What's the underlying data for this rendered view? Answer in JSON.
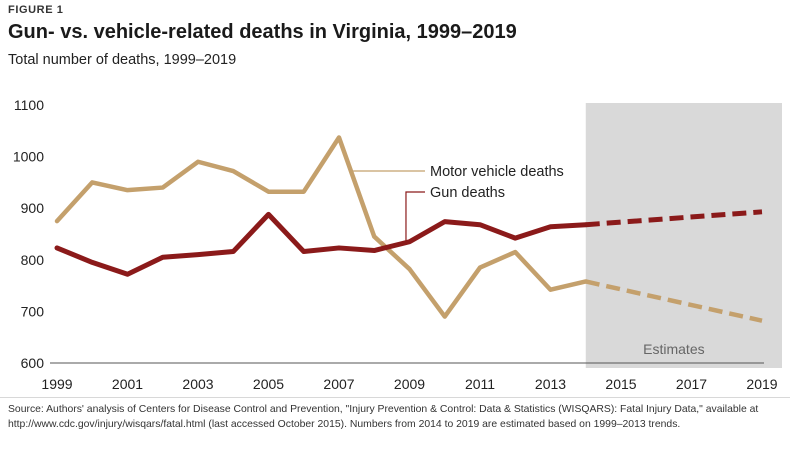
{
  "figure_label": "FIGURE 1",
  "title": "Gun- vs. vehicle-related deaths in Virginia, 1999–2019",
  "subtitle": "Total number of deaths, 1999–2019",
  "source": "Source: Authors' analysis of Centers for Disease Control and Prevention, \"Injury Prevention & Control: Data & Statistics (WISQARS): Fatal Injury Data,\" available at http://www.cdc.gov/injury/wisqars/fatal.html (last accessed October 2015). Numbers from 2014 to 2019 are estimated based on 1999–2013 trends.",
  "colors": {
    "gun": "#8b1a1a",
    "vehicle": "#c4a06c",
    "estimate_shade": "#d9d9d9",
    "estimate_text": "#666666"
  },
  "chart_data": {
    "type": "line",
    "title": "Gun- vs. vehicle-related deaths in Virginia, 1999–2019",
    "xlabel": "",
    "ylabel": "Total number of deaths",
    "xlim": [
      1999,
      2019
    ],
    "ylim": [
      600,
      1100
    ],
    "y_ticks": [
      600,
      700,
      800,
      900,
      1000,
      1100
    ],
    "x_ticks": [
      1999,
      2001,
      2003,
      2005,
      2007,
      2009,
      2011,
      2013,
      2015,
      2017,
      2019
    ],
    "estimate_region": {
      "start": 2014,
      "end": 2019,
      "label": "Estimates"
    },
    "series": [
      {
        "name": "Motor vehicle deaths",
        "key": "vehicle",
        "actual": {
          "x": [
            1999,
            2000,
            2001,
            2002,
            2003,
            2004,
            2005,
            2006,
            2007,
            2008,
            2009,
            2010,
            2011,
            2012,
            2013,
            2014
          ],
          "y": [
            875,
            950,
            935,
            940,
            990,
            972,
            932,
            932,
            1037,
            845,
            782,
            690,
            785,
            815,
            742,
            758
          ]
        },
        "estimated": {
          "x": [
            2014,
            2019
          ],
          "y": [
            758,
            682
          ]
        }
      },
      {
        "name": "Gun deaths",
        "key": "gun",
        "actual": {
          "x": [
            1999,
            2000,
            2001,
            2002,
            2003,
            2004,
            2005,
            2006,
            2007,
            2008,
            2009,
            2010,
            2011,
            2012,
            2013,
            2014
          ],
          "y": [
            823,
            795,
            772,
            805,
            810,
            816,
            888,
            816,
            823,
            818,
            835,
            874,
            868,
            842,
            864,
            868
          ]
        },
        "estimated": {
          "x": [
            2014,
            2019
          ],
          "y": [
            868,
            893
          ]
        }
      }
    ]
  }
}
